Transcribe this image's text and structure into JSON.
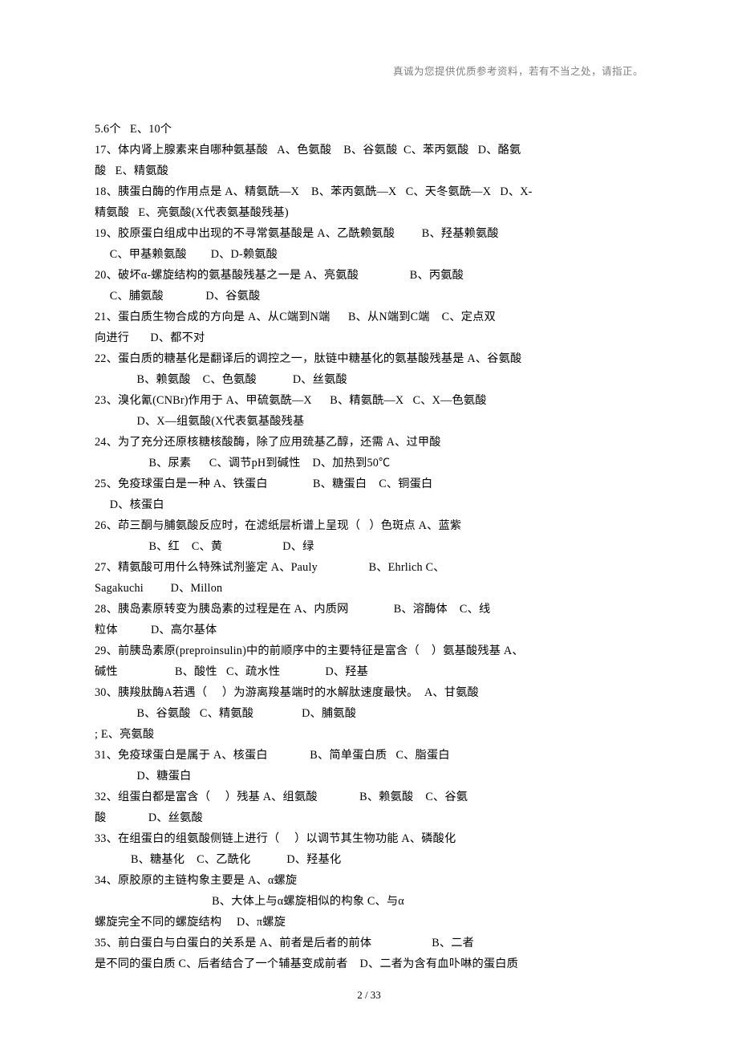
{
  "header_note": "真诚为您提供优质参考资料，若有不当之处，请指正。",
  "footer": "2 / 33",
  "lines": [
    "5.6个   E、10个",
    "17、体内肾上腺素来自哪种氨基酸   A、色氨酸    B、谷氨酸  C、苯丙氨酸   D、酪氨",
    "酸   E、精氨酸",
    "18、胰蛋白酶的作用点是 A、精氨酰—X    B、苯丙氨酰—X   C、天冬氨酰—X   D、X-",
    "精氨酸   E、亮氨酸(X代表氨基酸残基)",
    "19、胶原蛋白组成中出现的不寻常氨基酸是 A、乙酰赖氨酸         B、羟基赖氨酸",
    "     C、甲基赖氨酸        D、D-赖氨酸",
    "20、破坏α-螺旋结构的氨基酸残基之一是 A、亮氨酸                 B、丙氨酸",
    "     C、脯氨酸              D、谷氨酸",
    "21、蛋白质生物合成的方向是 A、从C端到N端      B、从N端到C端    C、定点双",
    "向进行       D、都不对",
    "22、蛋白质的糖基化是翻译后的调控之一，肽链中糖基化的氨基酸残基是 A、谷氨酸",
    "              B、赖氨酸    C、色氨酸            D、丝氨酸",
    "23、溴化氰(CNBr)作用于 A、甲硫氨酰—X      B、精氨酰—X   C、X—色氨酸",
    "              D、X—组氨酸(X代表氨基酸残基",
    "24、为了充分还原核糖核酸酶，除了应用巯基乙醇，还需 A、过甲酸",
    "                  B、尿素      C、调节pH到碱性    D、加热到50℃",
    "25、免疫球蛋白是一种 A、铁蛋白               B、糖蛋白    C、铜蛋白",
    "     D、核蛋白",
    "26、茚三酮与脯氨酸反应时，在滤纸层析谱上呈现（   ）色斑点 A、蓝紫",
    "                  B、红    C、黄                    D、绿",
    "27、精氨酸可用什么特殊试剂鉴定 A、Pauly                 B、Ehrlich C、",
    "Sagakuchi         D、Millon",
    "28、胰岛素原转变为胰岛素的过程是在 A、内质网               B、溶酶体    C、线",
    "粒体           D、高尔基体",
    "29、前胰岛素原(preproinsulin)中的前顺序中的主要特征是富含（    ）氨基酸残基 A、",
    "碱性                   B、酸性   C、疏水性               D、羟基",
    "30、胰羧肽酶A若遇（     ）为游离羧基端时的水解肽速度最快。  A、甘氨酸",
    "              B、谷氨酸   C、精氨酸                D、脯氨酸",
    "; E、亮氨酸",
    "31、免疫球蛋白是属于 A、核蛋白              B、简单蛋白质   C、脂蛋白",
    "              D、糖蛋白",
    "32、组蛋白都是富含（     ）残基 A、组氨酸              B、赖氨酸    C、谷氨",
    "酸              D、丝氨酸",
    "33、在组蛋白的组氨酸侧链上进行（     ）以调节其生物功能 A、磷酸化",
    "            B、糖基化    C、乙酰化            D、羟基化",
    "34、原胶原的主链构象主要是 A、α螺旋",
    "                                       B、大体上与α螺旋相似的构象 C、与α",
    "螺旋完全不同的螺旋结构     D、π螺旋",
    "35、前白蛋白与白蛋白的关系是 A、前者是后者的前体                    B、二者",
    "是不同的蛋白质 C、后者结合了一个辅基变成前者    D、二者为含有血卟啉的蛋白质"
  ]
}
